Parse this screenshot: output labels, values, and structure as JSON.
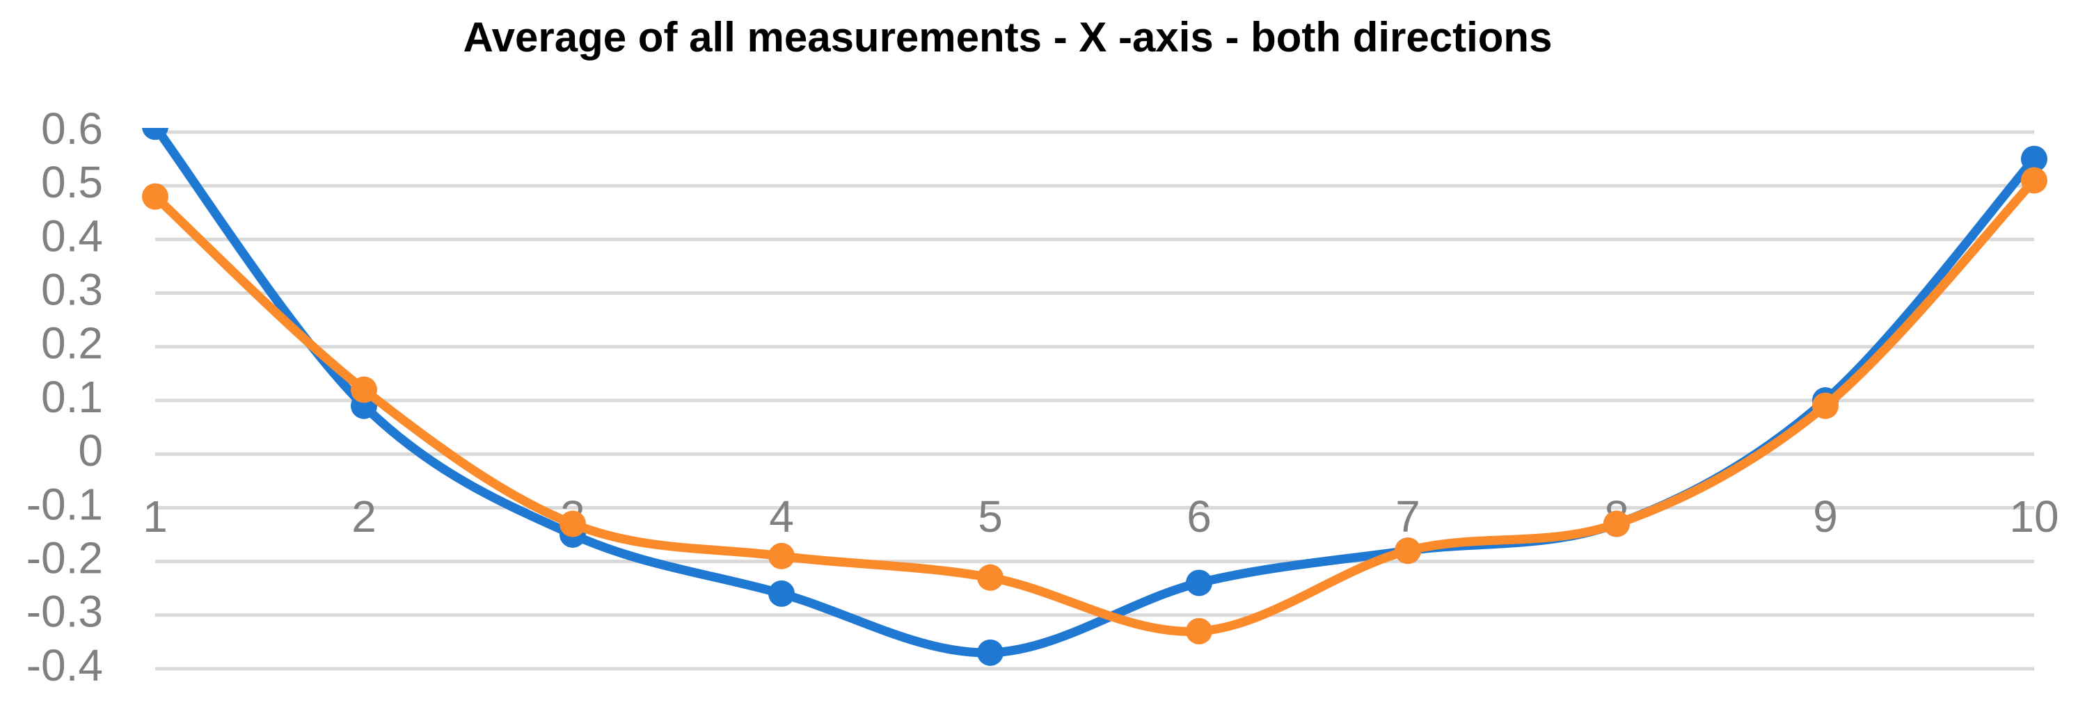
{
  "chart_data": {
    "type": "line",
    "title": "Average of all measurements - X -axis - both directions",
    "categories": [
      "1",
      "2",
      "3",
      "4",
      "5",
      "6",
      "7",
      "8",
      "9",
      "10"
    ],
    "series": [
      {
        "color": "#1f78d1",
        "values": [
          0.61,
          0.09,
          -0.15,
          -0.26,
          -0.37,
          -0.24,
          -0.18,
          -0.13,
          0.1,
          0.55
        ]
      },
      {
        "color": "#fb8a2b",
        "values": [
          0.48,
          0.12,
          -0.13,
          -0.19,
          -0.23,
          -0.33,
          -0.18,
          -0.13,
          0.09,
          0.51
        ]
      }
    ],
    "ylim": [
      -0.4,
      0.6
    ],
    "yticks": [
      0.6,
      0.5,
      0.4,
      0.3,
      0.2,
      0.1,
      0,
      -0.1,
      -0.2,
      -0.3,
      -0.4
    ],
    "grid": true,
    "smooth": true
  }
}
